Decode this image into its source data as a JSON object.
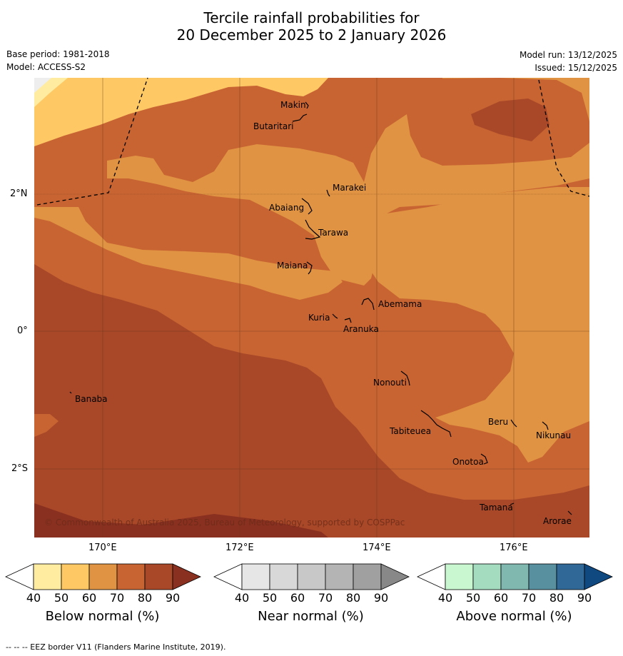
{
  "title": {
    "line1": "Tercile rainfall probabilities for",
    "line2": "20 December 2025 to 2 January 2026"
  },
  "meta": {
    "base_period": "Base period: 1981-2018",
    "model": "Model: ACCESS-S2",
    "model_run": "Model run: 13/12/2025",
    "issued": "Issued: 15/12/2025"
  },
  "map": {
    "lat_labels": [
      "2°N",
      "0°",
      "2°S"
    ],
    "lon_labels": [
      "170°E",
      "172°E",
      "174°E",
      "176°E"
    ],
    "places": {
      "makin": "Makin",
      "butaritari": "Butaritari",
      "marakei": "Marakei",
      "abaiang": "Abaiang",
      "tarawa": "Tarawa",
      "maiana": "Maiana",
      "abemama": "Abemama",
      "kuria": "Kuria",
      "aranuka": "Aranuka",
      "nonouti": "Nonouti",
      "banaba": "Banaba",
      "beru": "Beru",
      "nikunau": "Nikunau",
      "tabiteuea": "Tabiteuea",
      "onotoa": "Onotoa",
      "tamana": "Tamana",
      "arorae": "Arorae"
    },
    "copyright": "© Commonwealth of Australia 2025, Bureau of Meteorology, supported by COSPPac"
  },
  "colorbars": {
    "below": {
      "label": "Below normal (%)",
      "colors": [
        "#ffffff",
        "#ffeca0",
        "#fec865",
        "#e09342",
        "#c86432",
        "#a84828",
        "#8a3020"
      ]
    },
    "near": {
      "label": "Near normal (%)",
      "colors": [
        "#ffffff",
        "#e6e6e6",
        "#d8d8d8",
        "#c8c8c8",
        "#b4b4b4",
        "#a0a0a0",
        "#888888"
      ]
    },
    "above": {
      "label": "Above normal (%)",
      "colors": [
        "#ffffff",
        "#c8f7d0",
        "#a4dcc0",
        "#80b8b0",
        "#5890a0",
        "#306898",
        "#104880"
      ]
    },
    "ticks": [
      "40",
      "50",
      "60",
      "70",
      "80",
      "90"
    ]
  },
  "footer": "-- -- -- EEZ border V11 (Flanders Marine Institute, 2019)."
}
